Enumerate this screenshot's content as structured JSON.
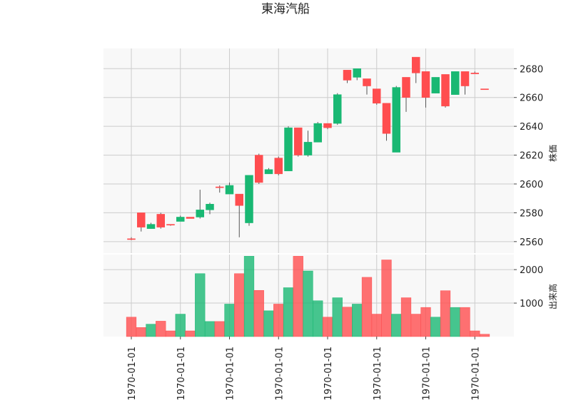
{
  "chart_data": {
    "type": "candlestick",
    "title": "東海汽船",
    "x_tick_labels": [
      "1970-01-01",
      "1970-01-01",
      "1970-01-01",
      "1970-01-01",
      "1970-01-01",
      "1970-01-01",
      "1970-01-01",
      "1970-01-01"
    ],
    "price_panel": {
      "ylabel": "株価",
      "ylim": [
        2552,
        2694
      ],
      "yticks": [
        2560,
        2580,
        2600,
        2620,
        2640,
        2660,
        2680
      ],
      "grid": true
    },
    "volume_panel": {
      "ylabel": "出来高",
      "ylim": [
        0,
        2450
      ],
      "yticks": [
        1000,
        2000
      ],
      "grid": true
    },
    "colors": {
      "up": "#ff4d4f",
      "down": "#19b873",
      "wick": "#555555",
      "grid": "#cccccc",
      "panel_bg": "#f8f8f8"
    },
    "candles": [
      {
        "open": 2562,
        "high": 2563,
        "low": 2561,
        "close": 2562,
        "volume": 580
      },
      {
        "open": 2570,
        "high": 2580,
        "low": 2567,
        "close": 2580,
        "volume": 270
      },
      {
        "open": 2572,
        "high": 2573,
        "low": 2569,
        "close": 2569,
        "volume": 370
      },
      {
        "open": 2570,
        "high": 2580,
        "low": 2569,
        "close": 2579,
        "volume": 460
      },
      {
        "open": 2572,
        "high": 2572,
        "low": 2571,
        "close": 2572,
        "volume": 170
      },
      {
        "open": 2577,
        "high": 2578,
        "low": 2574,
        "close": 2574,
        "volume": 670
      },
      {
        "open": 2576,
        "high": 2577,
        "low": 2576,
        "close": 2577,
        "volume": 170
      },
      {
        "open": 2582,
        "high": 2596,
        "low": 2576,
        "close": 2577,
        "volume": 1880
      },
      {
        "open": 2586,
        "high": 2587,
        "low": 2579,
        "close": 2582,
        "volume": 450
      },
      {
        "open": 2598,
        "high": 2599,
        "low": 2594,
        "close": 2598,
        "volume": 450
      },
      {
        "open": 2599,
        "high": 2601,
        "low": 2593,
        "close": 2593,
        "volume": 970
      },
      {
        "open": 2585,
        "high": 2593,
        "low": 2563,
        "close": 2593,
        "volume": 1880
      },
      {
        "open": 2606,
        "high": 2606,
        "low": 2571,
        "close": 2573,
        "volume": 2400
      },
      {
        "open": 2601,
        "high": 2621,
        "low": 2600,
        "close": 2620,
        "volume": 1380
      },
      {
        "open": 2610,
        "high": 2611,
        "low": 2607,
        "close": 2607,
        "volume": 770
      },
      {
        "open": 2607,
        "high": 2619,
        "low": 2606,
        "close": 2618,
        "volume": 970
      },
      {
        "open": 2639,
        "high": 2640,
        "low": 2609,
        "close": 2609,
        "volume": 1460
      },
      {
        "open": 2620,
        "high": 2639,
        "low": 2619,
        "close": 2639,
        "volume": 2400
      },
      {
        "open": 2629,
        "high": 2637,
        "low": 2619,
        "close": 2620,
        "volume": 1960
      },
      {
        "open": 2642,
        "high": 2643,
        "low": 2629,
        "close": 2629,
        "volume": 1070
      },
      {
        "open": 2639,
        "high": 2642,
        "low": 2638,
        "close": 2642,
        "volume": 580
      },
      {
        "open": 2662,
        "high": 2663,
        "low": 2641,
        "close": 2642,
        "volume": 1160
      },
      {
        "open": 2672,
        "high": 2679,
        "low": 2670,
        "close": 2679,
        "volume": 880
      },
      {
        "open": 2680,
        "high": 2680,
        "low": 2672,
        "close": 2674,
        "volume": 970
      },
      {
        "open": 2668,
        "high": 2673,
        "low": 2662,
        "close": 2673,
        "volume": 1770
      },
      {
        "open": 2656,
        "high": 2666,
        "low": 2655,
        "close": 2666,
        "volume": 670
      },
      {
        "open": 2635,
        "high": 2656,
        "low": 2630,
        "close": 2656,
        "volume": 2290
      },
      {
        "open": 2667,
        "high": 2668,
        "low": 2622,
        "close": 2622,
        "volume": 670
      },
      {
        "open": 2660,
        "high": 2674,
        "low": 2650,
        "close": 2674,
        "volume": 1160
      },
      {
        "open": 2677,
        "high": 2688,
        "low": 2670,
        "close": 2688,
        "volume": 670
      },
      {
        "open": 2660,
        "high": 2678,
        "low": 2653,
        "close": 2678,
        "volume": 870
      },
      {
        "open": 2674,
        "high": 2674,
        "low": 2663,
        "close": 2663,
        "volume": 580
      },
      {
        "open": 2654,
        "high": 2676,
        "low": 2653,
        "close": 2676,
        "volume": 1370
      },
      {
        "open": 2678,
        "high": 2678,
        "low": 2662,
        "close": 2662,
        "volume": 870
      },
      {
        "open": 2668,
        "high": 2678,
        "low": 2662,
        "close": 2678,
        "volume": 870
      },
      {
        "open": 2677,
        "high": 2678,
        "low": 2677,
        "close": 2677,
        "volume": 170
      },
      {
        "open": 2666,
        "high": 2666,
        "low": 2666,
        "close": 2666,
        "volume": 70
      }
    ]
  }
}
